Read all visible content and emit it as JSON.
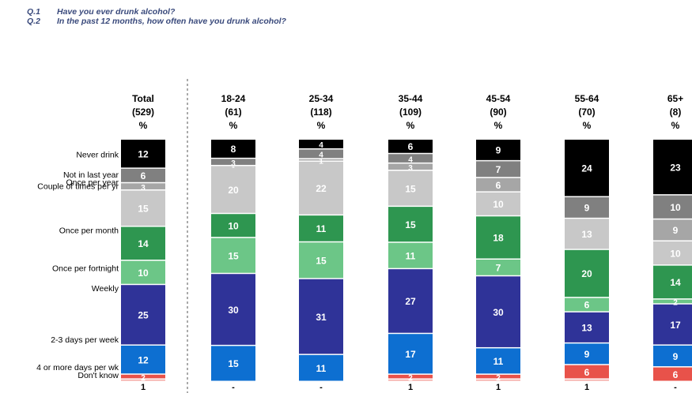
{
  "questions": [
    {
      "num": "Q.1",
      "text": "Have you ever drunk alcohol?"
    },
    {
      "num": "Q.2",
      "text": "In the past 12 months, how often have you drunk alcohol?"
    }
  ],
  "chart_data": {
    "type": "bar",
    "stacked": true,
    "orientation": "vertical",
    "unit": "%",
    "columns": [
      {
        "header": "Total",
        "base": "(529)",
        "unit": "%"
      },
      {
        "header": "18-24",
        "base": "(61)",
        "unit": "%"
      },
      {
        "header": "25-34",
        "base": "(118)",
        "unit": "%"
      },
      {
        "header": "35-44",
        "base": "(109)",
        "unit": "%"
      },
      {
        "header": "45-54",
        "base": "(90)",
        "unit": "%"
      },
      {
        "header": "55-64",
        "base": "(70)",
        "unit": "%"
      },
      {
        "header": "65+",
        "base": "(8)",
        "unit": "%"
      }
    ],
    "categories": [
      "Total",
      "18-24",
      "25-34",
      "35-44",
      "45-54",
      "55-64",
      "65+"
    ],
    "series": [
      {
        "name": "Never drink",
        "color": "#000000",
        "label_color": "#ffffff",
        "values": [
          12,
          8,
          4,
          6,
          9,
          24,
          23
        ],
        "labels": [
          "12",
          "8",
          "4",
          "6",
          "9",
          "24",
          "23"
        ]
      },
      {
        "name": "Not in last year",
        "color": "#808080",
        "label_color": "#ffffff",
        "values": [
          6,
          3,
          4,
          4,
          7,
          9,
          10
        ],
        "labels": [
          "6",
          "3",
          "4",
          "4",
          "7",
          "9",
          "10"
        ]
      },
      {
        "name": "Once per year",
        "color": "#a6a6a6",
        "label_color": "#ffffff",
        "values": [
          3,
          0,
          1,
          3,
          6,
          0,
          9
        ],
        "labels": [
          "3",
          "-",
          "1",
          "3",
          "6",
          "",
          "9"
        ]
      },
      {
        "name": "Couple of times per yr",
        "color": "#c8c8c8",
        "label_color": "#ffffff",
        "values": [
          15,
          20,
          22,
          15,
          10,
          13,
          10
        ],
        "labels": [
          "15",
          "20",
          "22",
          "15",
          "10",
          "13",
          "10"
        ]
      },
      {
        "name": "Once per month",
        "color": "#2e9650",
        "label_color": "#ffffff",
        "values": [
          14,
          10,
          11,
          15,
          18,
          20,
          14
        ],
        "labels": [
          "14",
          "10",
          "11",
          "15",
          "18",
          "20",
          "14"
        ]
      },
      {
        "name": "Once per fortnight",
        "color": "#6cc687",
        "label_color": "#ffffff",
        "values": [
          10,
          15,
          15,
          11,
          7,
          6,
          2
        ],
        "labels": [
          "10",
          "15",
          "15",
          "11",
          "7",
          "6",
          "2"
        ]
      },
      {
        "name": "Weekly",
        "color": "#2f3398",
        "label_color": "#ffffff",
        "values": [
          25,
          30,
          31,
          27,
          30,
          13,
          17
        ],
        "labels": [
          "25",
          "30",
          "31",
          "27",
          "30",
          "13",
          "17"
        ]
      },
      {
        "name": "2-3 days per week",
        "color": "#0d6fd1",
        "label_color": "#ffffff",
        "values": [
          12,
          15,
          11,
          17,
          11,
          9,
          9
        ],
        "labels": [
          "12",
          "15",
          "11",
          "17",
          "11",
          "9",
          "9"
        ]
      },
      {
        "name": "4 or more days per wk",
        "color": "#e8524a",
        "label_color": "#ffffff",
        "values": [
          2,
          0,
          0,
          2,
          2,
          6,
          6
        ],
        "labels": [
          "2",
          "",
          "",
          "2",
          "2",
          "6",
          "6"
        ]
      },
      {
        "name": "Don't know",
        "color": "#f4a7a2",
        "label_color": "#000000",
        "values": [
          1,
          0,
          0,
          1,
          1,
          1,
          0
        ],
        "labels": [
          "1",
          "-",
          "-",
          "1",
          "1",
          "1",
          "-"
        ]
      }
    ],
    "legend_position": "left",
    "grid": false
  }
}
